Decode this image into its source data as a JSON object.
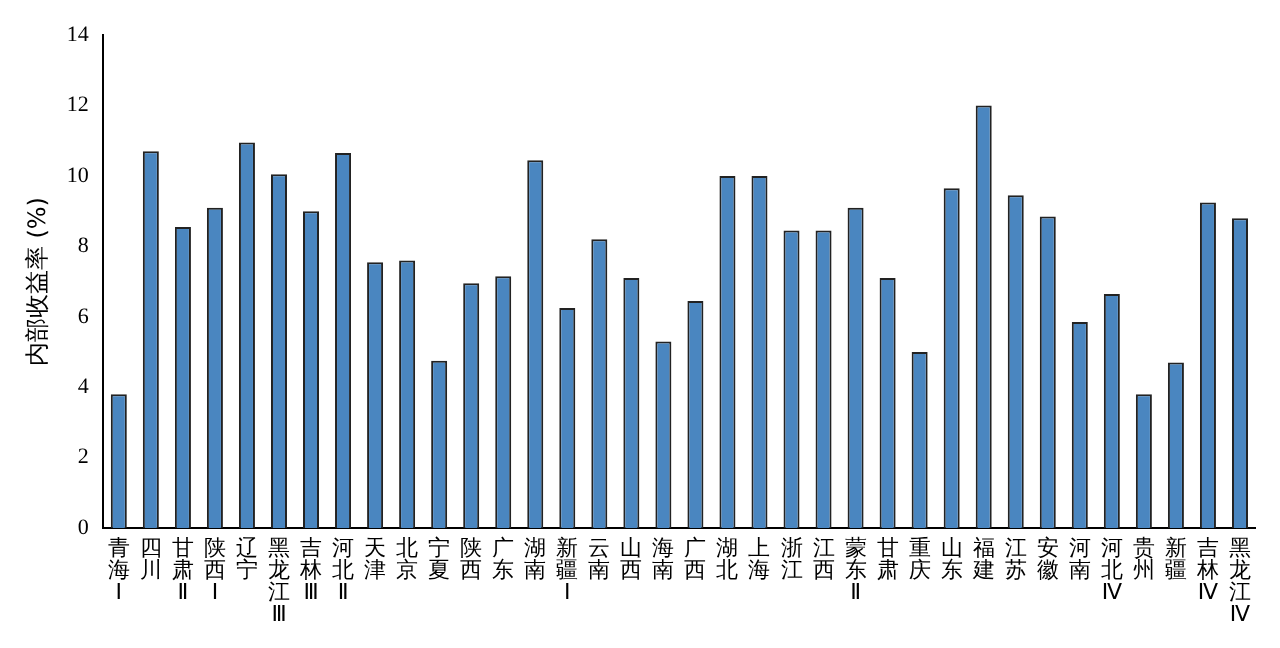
{
  "chart_data": {
    "type": "bar",
    "ylabel": "内部收益率 (%)",
    "categories": [
      "青海Ⅰ",
      "四川",
      "甘肃Ⅱ",
      "陕西Ⅰ",
      "辽宁",
      "黑龙江Ⅲ",
      "吉林Ⅲ",
      "河北Ⅱ",
      "天津",
      "北京",
      "宁夏",
      "陕西",
      "广东",
      "湖南",
      "新疆Ⅰ",
      "云南",
      "山西",
      "海南",
      "广西",
      "湖北",
      "上海",
      "浙江",
      "江西",
      "蒙东Ⅱ",
      "甘肃",
      "重庆",
      "山东",
      "福建",
      "江苏",
      "安徽",
      "河南",
      "河北Ⅳ",
      "贵州",
      "新疆",
      "吉林Ⅳ",
      "黑龙江Ⅳ"
    ],
    "values": [
      3.8,
      10.7,
      8.55,
      9.1,
      10.95,
      10.05,
      9.0,
      10.65,
      7.55,
      7.6,
      4.75,
      6.95,
      7.15,
      10.45,
      6.25,
      8.2,
      7.1,
      5.3,
      6.45,
      10.0,
      10.0,
      8.45,
      8.45,
      9.1,
      7.1,
      5.0,
      9.65,
      12.0,
      9.45,
      8.85,
      5.85,
      6.65,
      3.8,
      4.7,
      9.25,
      8.8
    ],
    "color": "#4a86c0",
    "ylim": [
      0,
      14
    ],
    "yticks": [
      0,
      2,
      4,
      6,
      8,
      10,
      12,
      14
    ],
    "grid": false,
    "legend": false
  }
}
